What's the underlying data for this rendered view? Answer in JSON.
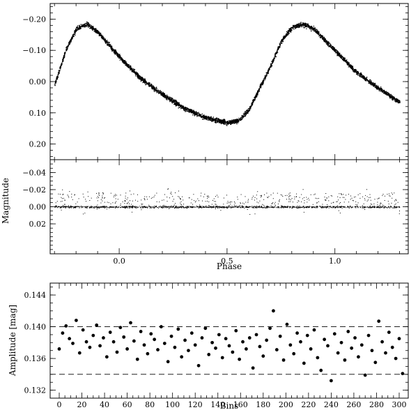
{
  "chart_data": [
    {
      "type": "scatter",
      "panel": "top",
      "title": "",
      "xlabel": "",
      "ylabel": "Magnitude",
      "xlim": [
        -0.32,
        1.34
      ],
      "ylim": [
        0.25,
        -0.25
      ],
      "y_inverted": true,
      "yticks": [
        -0.2,
        -0.1,
        0.0,
        0.1,
        0.2
      ],
      "ytick_labels": [
        "−0.20",
        "−0.10",
        "0.00",
        "0.10",
        "0.20"
      ],
      "series": [
        {
          "description": "phase-folded light curve, dense band of points",
          "x": [
            -0.3,
            -0.25,
            -0.2,
            -0.15,
            -0.1,
            0.0,
            0.1,
            0.2,
            0.3,
            0.4,
            0.5,
            0.55,
            0.6,
            0.7,
            0.75,
            0.8,
            0.85,
            0.9,
            1.0,
            1.1,
            1.2,
            1.3
          ],
          "y": [
            0.01,
            -0.1,
            -0.17,
            -0.185,
            -0.16,
            -0.08,
            -0.01,
            0.04,
            0.085,
            0.115,
            0.13,
            0.125,
            0.09,
            -0.05,
            -0.13,
            -0.175,
            -0.185,
            -0.17,
            -0.1,
            -0.03,
            0.02,
            0.065
          ],
          "band_halfwidth": 0.012
        }
      ]
    },
    {
      "type": "scatter",
      "panel": "middle",
      "title": "",
      "xlabel": "Phase",
      "ylabel": "Magnitude",
      "xlim": [
        -0.32,
        1.34
      ],
      "ylim": [
        0.055,
        -0.055
      ],
      "y_inverted": true,
      "xticks": [
        0.0,
        0.5,
        1.0
      ],
      "xtick_labels": [
        "0.0",
        "0.5",
        "1.0"
      ],
      "yticks": [
        -0.04,
        -0.02,
        0.0,
        0.02
      ],
      "ytick_labels": [
        "−0.04",
        "−0.02",
        "0.00",
        "0.02"
      ],
      "series": [
        {
          "description": "residuals around zero",
          "x_range": [
            -0.3,
            1.3
          ],
          "core_halfwidth": 0.002,
          "scatter_range": [
            -0.022,
            0.01
          ]
        }
      ]
    },
    {
      "type": "scatter",
      "panel": "bottom",
      "title": "",
      "xlabel": "Bins",
      "ylabel": "Amplitude [mag]",
      "xlim": [
        -8,
        308
      ],
      "ylim": [
        0.131,
        0.1455
      ],
      "xticks": [
        0,
        20,
        40,
        60,
        80,
        100,
        120,
        140,
        160,
        180,
        200,
        220,
        240,
        260,
        280,
        300
      ],
      "xtick_labels": [
        "0",
        "20",
        "40",
        "60",
        "80",
        "100",
        "120",
        "140",
        "160",
        "180",
        "200",
        "220",
        "240",
        "260",
        "280",
        "300"
      ],
      "yticks": [
        0.132,
        0.136,
        0.14,
        0.144
      ],
      "ytick_labels": [
        "0.132",
        "0.136",
        "0.140",
        "0.144"
      ],
      "hlines": [
        0.134,
        0.14
      ],
      "series": [
        {
          "description": "amplitude per bin",
          "x": [
            0,
            3,
            6,
            9,
            12,
            15,
            18,
            21,
            24,
            27,
            30,
            33,
            36,
            39,
            42,
            45,
            48,
            51,
            54,
            57,
            60,
            63,
            66,
            69,
            72,
            75,
            78,
            81,
            84,
            87,
            90,
            93,
            96,
            99,
            102,
            105,
            108,
            111,
            114,
            117,
            120,
            123,
            126,
            129,
            132,
            135,
            138,
            141,
            144,
            147,
            150,
            153,
            156,
            159,
            162,
            165,
            168,
            171,
            174,
            177,
            180,
            183,
            186,
            189,
            192,
            195,
            198,
            201,
            204,
            207,
            210,
            213,
            216,
            219,
            222,
            225,
            228,
            231,
            234,
            237,
            240,
            243,
            246,
            249,
            252,
            255,
            258,
            261,
            264,
            267,
            270,
            273,
            276,
            279,
            282,
            285,
            288,
            291,
            294,
            297,
            300,
            303
          ],
          "y": [
            0.1372,
            0.1392,
            0.1401,
            0.1385,
            0.1379,
            0.1408,
            0.1367,
            0.1396,
            0.1381,
            0.1374,
            0.1389,
            0.1402,
            0.1376,
            0.1386,
            0.1362,
            0.1393,
            0.1381,
            0.1368,
            0.1399,
            0.1387,
            0.1372,
            0.1405,
            0.1382,
            0.1359,
            0.1394,
            0.1377,
            0.1366,
            0.1391,
            0.1384,
            0.1371,
            0.14,
            0.1379,
            0.1356,
            0.1388,
            0.1374,
            0.1397,
            0.1362,
            0.1383,
            0.137,
            0.1392,
            0.1377,
            0.1351,
            0.1386,
            0.1398,
            0.1365,
            0.138,
            0.1373,
            0.139,
            0.1361,
            0.1385,
            0.1376,
            0.1368,
            0.1395,
            0.1359,
            0.1381,
            0.1372,
            0.1386,
            0.1348,
            0.139,
            0.1375,
            0.1363,
            0.1383,
            0.1398,
            0.142,
            0.1371,
            0.1388,
            0.1358,
            0.1403,
            0.1377,
            0.1366,
            0.1392,
            0.1381,
            0.1354,
            0.1389,
            0.1372,
            0.1396,
            0.1361,
            0.1345,
            0.1384,
            0.1376,
            0.1332,
            0.1391,
            0.1367,
            0.138,
            0.1358,
            0.1394,
            0.1373,
            0.1386,
            0.1362,
            0.1377,
            0.1339,
            0.1389,
            0.137,
            0.1355,
            0.1407,
            0.1381,
            0.1367,
            0.1393,
            0.1374,
            0.136,
            0.1385,
            0.1341
          ]
        }
      ]
    }
  ]
}
